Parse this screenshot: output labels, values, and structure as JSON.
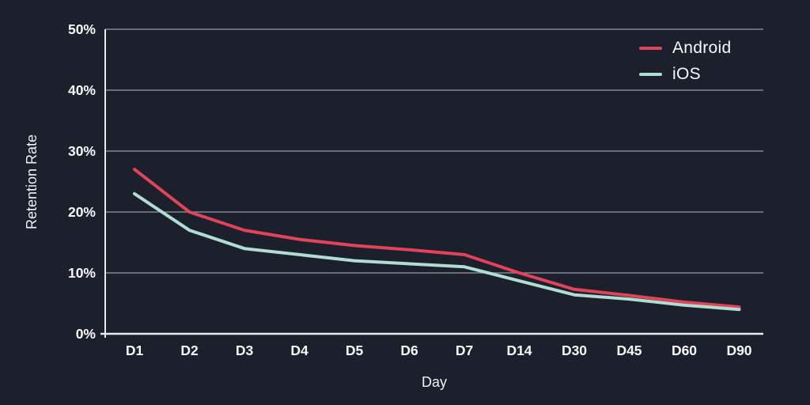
{
  "colors": {
    "background": "#1b202c",
    "grid": "#81868f",
    "axis": "#e8eaec",
    "text": "#f7f8f9"
  },
  "chart_data": {
    "type": "line",
    "title": "",
    "xlabel": "Day",
    "ylabel": "Retention Rate",
    "categories": [
      "D1",
      "D2",
      "D3",
      "D4",
      "D5",
      "D6",
      "D7",
      "D14",
      "D30",
      "D45",
      "D60",
      "D90"
    ],
    "series": [
      {
        "name": "Android",
        "color": "#e14458",
        "values": [
          27,
          20,
          17,
          15.5,
          14.5,
          13.8,
          13,
          10,
          7.3,
          6.3,
          5.2,
          4.4
        ]
      },
      {
        "name": "iOS",
        "color": "#b0dcd3",
        "values": [
          23,
          17,
          14,
          13,
          12,
          11.5,
          11,
          8.7,
          6.4,
          5.7,
          4.7,
          4
        ]
      }
    ],
    "ylim": [
      0,
      50
    ],
    "y_ticks": [
      {
        "value": 0,
        "label": "0%"
      },
      {
        "value": 10,
        "label": "10%"
      },
      {
        "value": 20,
        "label": "20%"
      },
      {
        "value": 30,
        "label": "30%"
      },
      {
        "value": 40,
        "label": "40%"
      },
      {
        "value": 50,
        "label": "50%"
      }
    ],
    "grid": "horizontal",
    "legend_position": "top-right"
  }
}
